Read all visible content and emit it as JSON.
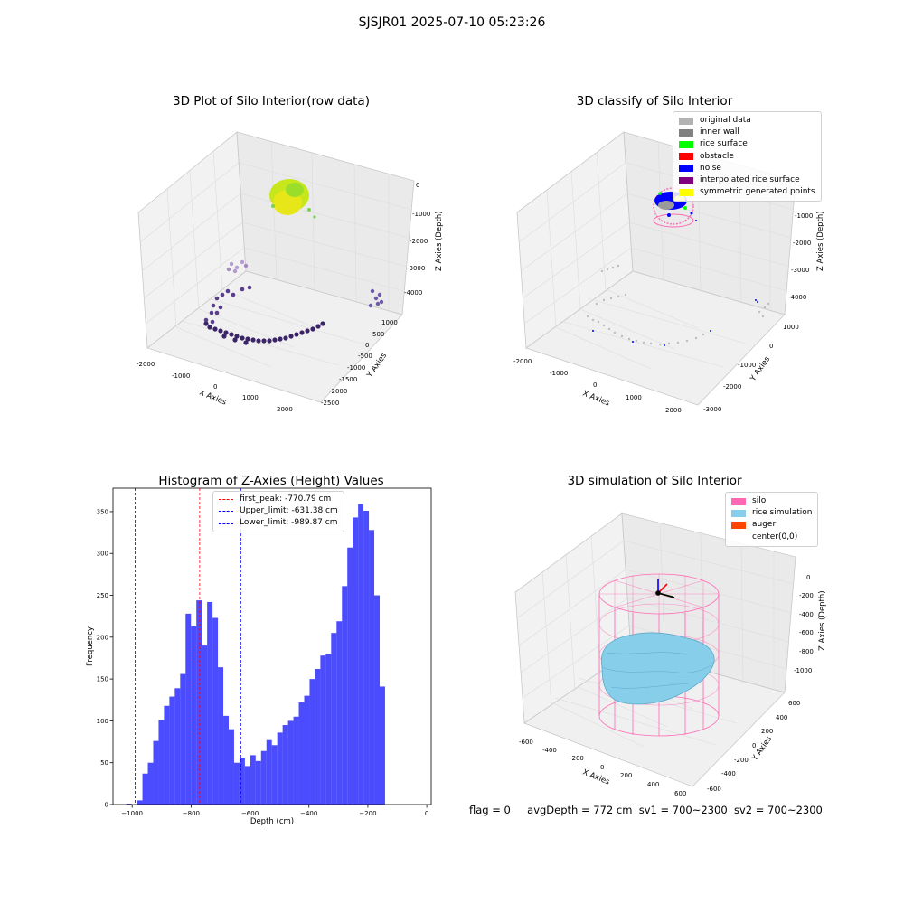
{
  "figure": {
    "suptitle": "SJSJR01 2025-07-10 05:23:26",
    "status": {
      "flag": "flag = 0",
      "avg_depth": "avgDepth = 772 cm",
      "sv1": "sv1 = 700~2300",
      "sv2": "sv2 = 700~2300"
    }
  },
  "panel_raw": {
    "title": "3D Plot of Silo Interior(row data)",
    "xlabel": "X Axies",
    "ylabel": "Y Axies",
    "zlabel": "Z Axies (Depth)",
    "x_ticks": [
      "-2000",
      "-1000",
      "0",
      "1000",
      "2000"
    ],
    "y_ticks": [
      "1000",
      "500",
      "0",
      "-500",
      "-1000",
      "-1500",
      "-2000",
      "-2500"
    ],
    "z_ticks": [
      "0",
      "-1000",
      "-2000",
      "-3000",
      "-4000"
    ]
  },
  "panel_classify": {
    "title": "3D classify of Silo Interior",
    "xlabel": "X Axies",
    "ylabel": "Y Axies",
    "zlabel": "Z Axies (Depth)",
    "x_ticks": [
      "-2000",
      "-1000",
      "0",
      "1000",
      "2000"
    ],
    "y_ticks": [
      "1000",
      "0",
      "-1000",
      "-2000",
      "-3000"
    ],
    "z_ticks": [
      "-1000",
      "-2000",
      "-3000",
      "-4000"
    ],
    "legend": [
      {
        "label": "original data",
        "color": "#b3b3b3"
      },
      {
        "label": "inner wall",
        "color": "#808080"
      },
      {
        "label": "rice surface",
        "color": "#00ff00"
      },
      {
        "label": "obstacle",
        "color": "#ff0000"
      },
      {
        "label": "noise",
        "color": "#0000ff"
      },
      {
        "label": "interpolated rice surface",
        "color": "#800080"
      },
      {
        "label": "symmetric generated points",
        "color": "#ffff00"
      }
    ]
  },
  "panel_sim": {
    "title": "3D simulation of Silo Interior",
    "xlabel": "X Axies",
    "ylabel": "Y Axies",
    "zlabel": "Z Axies (Depth)",
    "x_ticks": [
      "-600",
      "-400",
      "-200",
      "0",
      "200",
      "400",
      "600"
    ],
    "y_ticks": [
      "600",
      "400",
      "200",
      "0",
      "-200",
      "-400",
      "-600"
    ],
    "z_ticks": [
      "0",
      "-200",
      "-400",
      "-600",
      "-800",
      "-1000"
    ],
    "legend": [
      {
        "label": "silo",
        "color": "#ff69b4"
      },
      {
        "label": "rice simulation",
        "color": "#87ceeb"
      },
      {
        "label": "auger",
        "color": "#ff4500"
      },
      {
        "label": "center(0,0)",
        "color": "#ffffff"
      }
    ]
  },
  "chart_data": [
    {
      "type": "bar",
      "title": "Histogram of Z-Axies (Height) Values",
      "xlabel": "Depth (cm)",
      "ylabel": "Frequency",
      "xlim": [
        -1065,
        15
      ],
      "ylim": [
        0,
        378
      ],
      "x_ticks": [
        -1000,
        -800,
        -600,
        -400,
        -200,
        0
      ],
      "y_ticks": [
        0,
        50,
        100,
        150,
        200,
        250,
        300,
        350
      ],
      "color": "#0000ff",
      "bin_start": -1020,
      "bin_width": 18.3,
      "values": [
        1,
        0,
        5,
        37,
        50,
        76,
        101,
        118,
        129,
        139,
        156,
        228,
        213,
        244,
        190,
        242,
        223,
        164,
        106,
        90,
        50,
        56,
        46,
        59,
        52,
        64,
        77,
        71,
        86,
        95,
        100,
        105,
        122,
        130,
        150,
        162,
        178,
        180,
        205,
        219,
        261,
        307,
        343,
        359,
        351,
        328,
        250,
        141
      ],
      "vlines": [
        {
          "x": -770.79,
          "color": "#ff0000",
          "label": "first_peak: -770.79 cm"
        },
        {
          "x": -631.38,
          "color": "#0000ff",
          "label": "Upper_limit: -631.38 cm"
        },
        {
          "x": -989.87,
          "color": "#0000ff",
          "label": "Lower_limit: -989.87 cm"
        }
      ],
      "legend_position": "top-center",
      "grid": false
    }
  ]
}
